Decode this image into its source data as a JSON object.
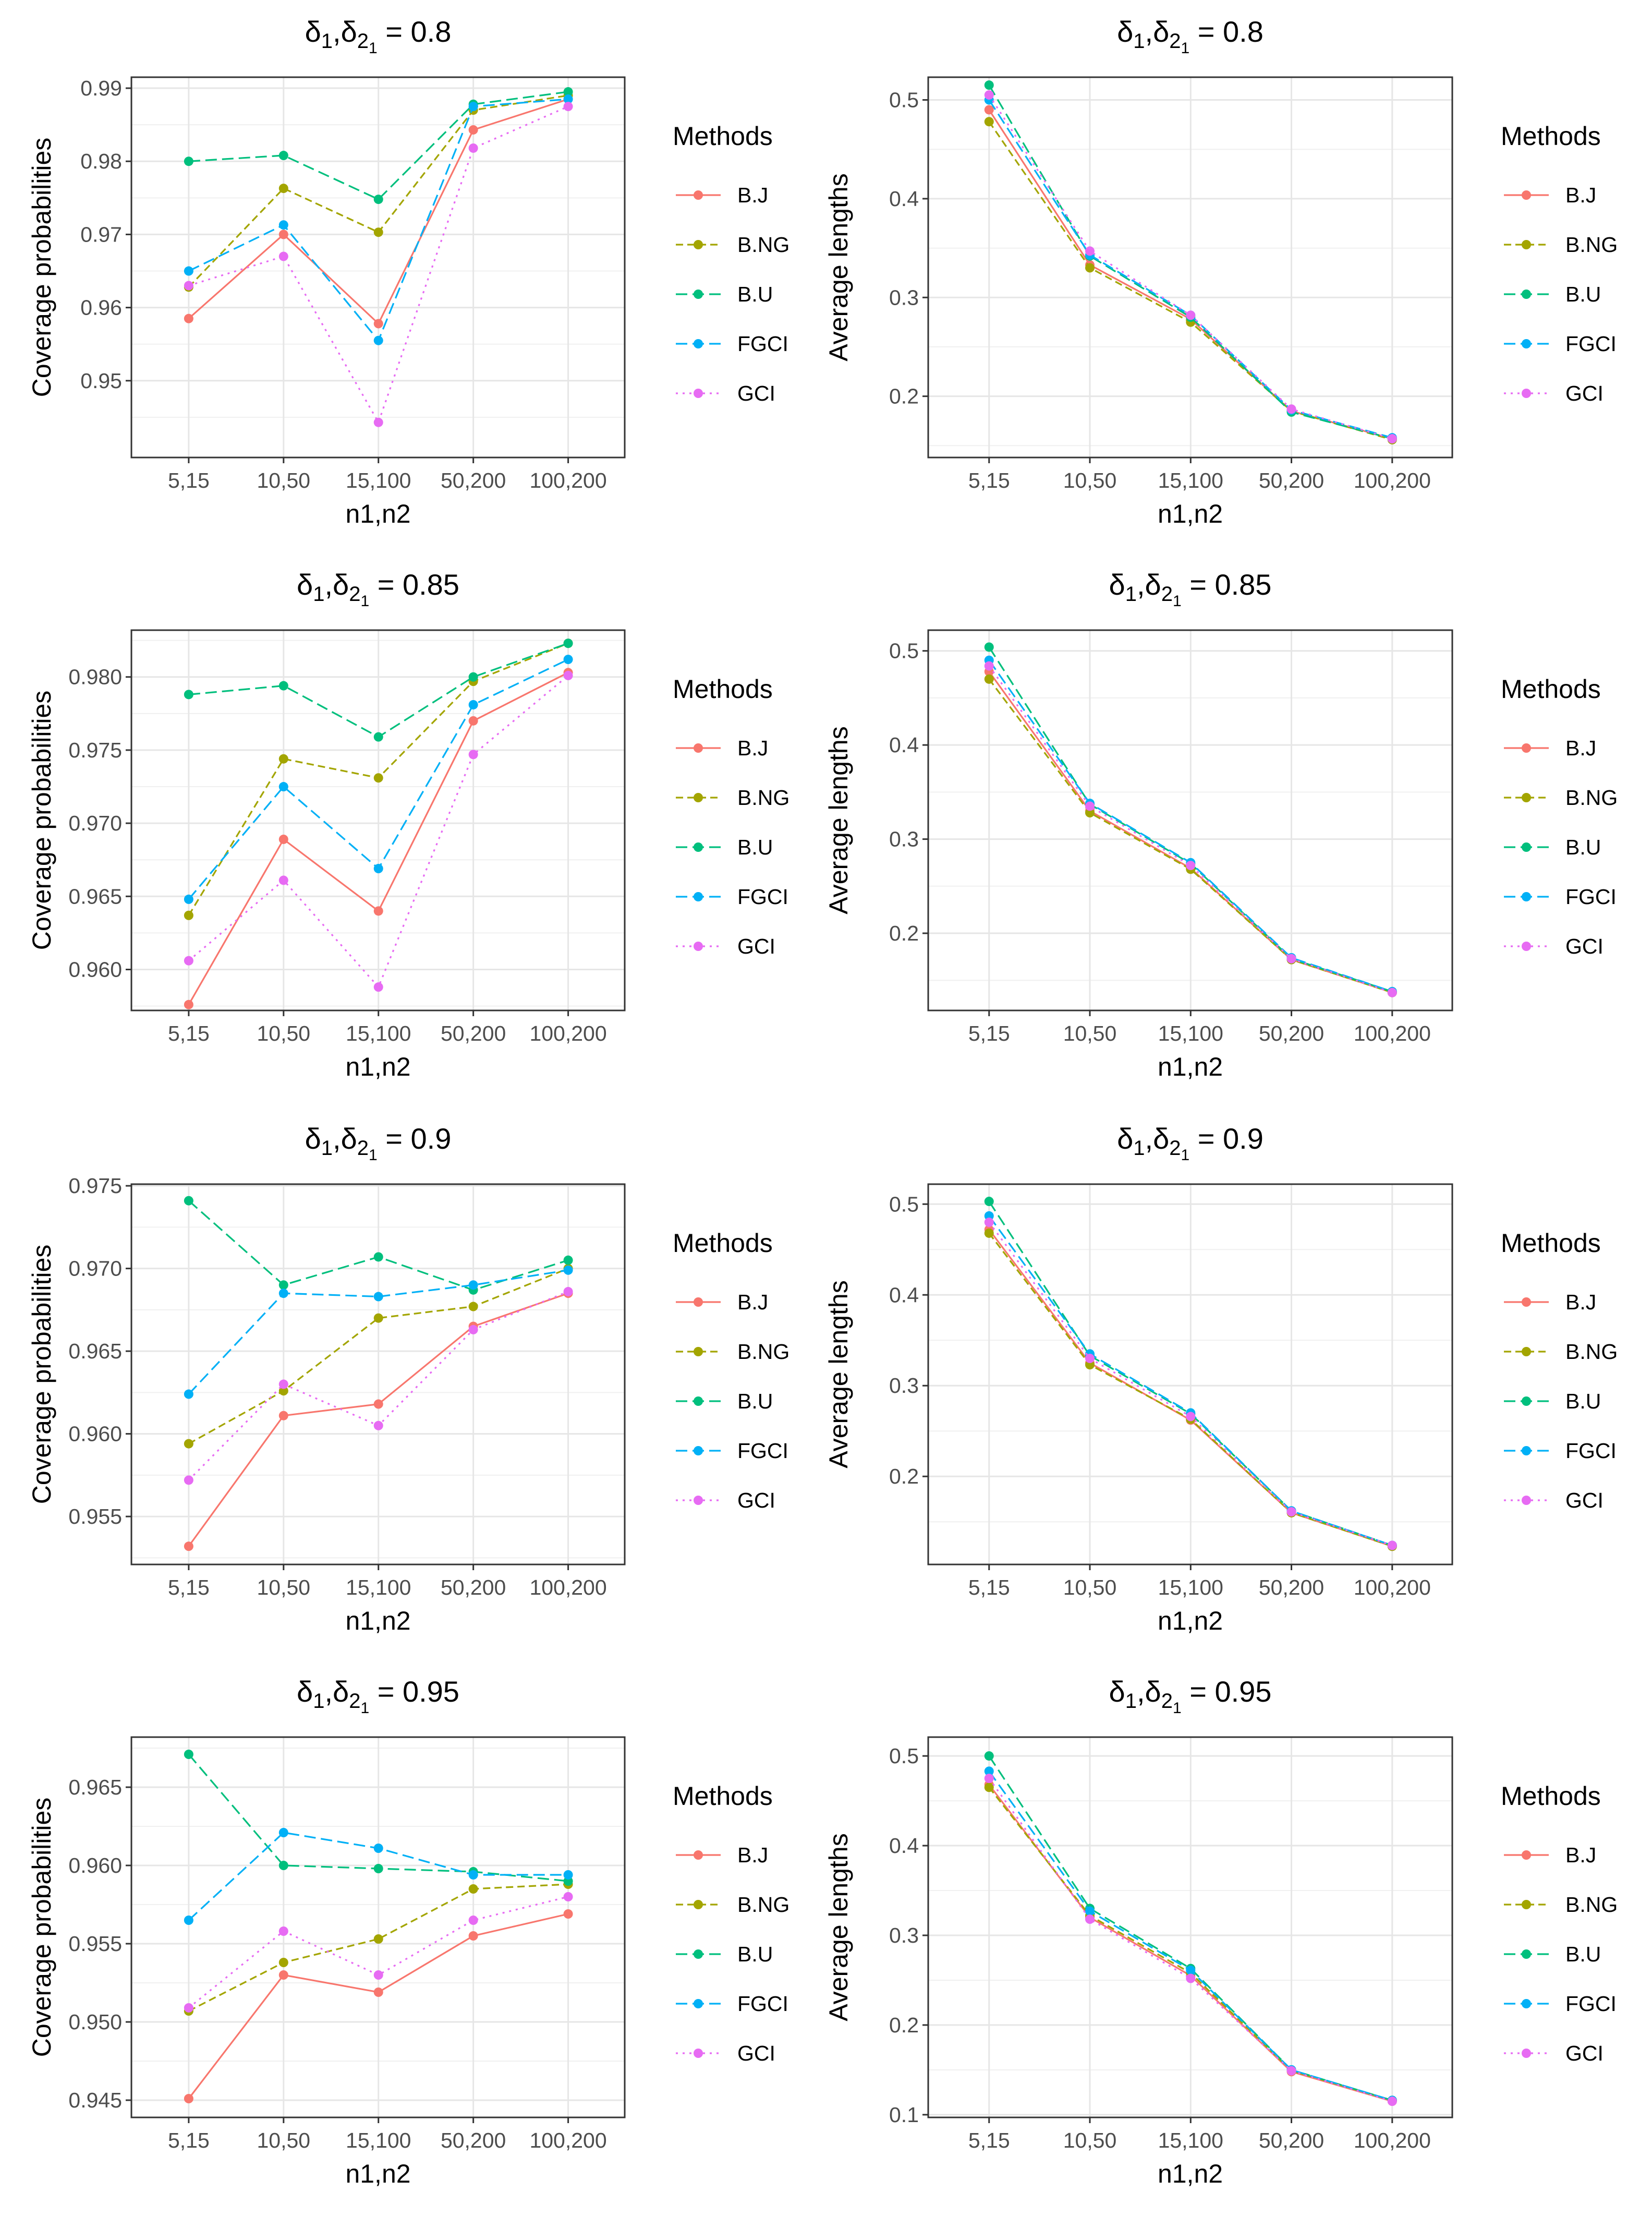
{
  "legend": {
    "title": "Methods",
    "entries": [
      "B.J",
      "B.NG",
      "B.U",
      "FGCI",
      "GCI"
    ]
  },
  "series_style": {
    "B.J": {
      "color": "#F8766D",
      "dash": "solid"
    },
    "B.NG": {
      "color": "#A3A500",
      "dash": "dashed"
    },
    "B.U": {
      "color": "#00BF7D",
      "dash": "longdash"
    },
    "FGCI": {
      "color": "#00B0F6",
      "dash": "longdash"
    },
    "GCI": {
      "color": "#E76BF3",
      "dash": "dotted"
    }
  },
  "chart_data": [
    {
      "type": "line",
      "row": 1,
      "col": 1,
      "title": "δ1₁,δ2₁ = 0.8",
      "title_parts": {
        "delta": "δ",
        "sub_a": "1",
        "sub_b": "2",
        "sub_sub": "1",
        "eq": "= 0.8"
      },
      "xlabel": "n1,n2",
      "ylabel": "Coverage probabilities",
      "categories": [
        "5,15",
        "10,50",
        "15,100",
        "50,200",
        "100,200"
      ],
      "ylim": [
        0.9395,
        0.9915
      ],
      "yticks": [
        0.95,
        0.96,
        0.97,
        0.98,
        0.99
      ],
      "ytick_labels": [
        "0.95",
        "0.96",
        "0.97",
        "0.98",
        "0.99"
      ],
      "series": [
        {
          "name": "B.J",
          "values": [
            0.9585,
            0.97,
            0.9578,
            0.9843,
            0.9885
          ]
        },
        {
          "name": "B.NG",
          "values": [
            0.9628,
            0.9763,
            0.9703,
            0.987,
            0.989
          ]
        },
        {
          "name": "B.U",
          "values": [
            0.98,
            0.9808,
            0.9748,
            0.9878,
            0.9895
          ]
        },
        {
          "name": "FGCI",
          "values": [
            0.965,
            0.9713,
            0.9555,
            0.9875,
            0.9885
          ]
        },
        {
          "name": "GCI",
          "values": [
            0.963,
            0.967,
            0.9443,
            0.9818,
            0.9875
          ]
        }
      ]
    },
    {
      "type": "line",
      "row": 1,
      "col": 2,
      "title": "δ1₁,δ2₁ = 0.8",
      "title_parts": {
        "delta": "δ",
        "sub_a": "1",
        "sub_b": "2",
        "sub_sub": "1",
        "eq": "= 0.8"
      },
      "xlabel": "n1,n2",
      "ylabel": "Average lengths",
      "categories": [
        "5,15",
        "10,50",
        "15,100",
        "50,200",
        "100,200"
      ],
      "ylim": [
        0.138,
        0.523
      ],
      "yticks": [
        0.2,
        0.3,
        0.4,
        0.5
      ],
      "ytick_labels": [
        "0.2",
        "0.3",
        "0.4",
        "0.5"
      ],
      "series": [
        {
          "name": "B.J",
          "values": [
            0.49,
            0.333,
            0.278,
            0.185,
            0.157
          ]
        },
        {
          "name": "B.NG",
          "values": [
            0.478,
            0.33,
            0.275,
            0.185,
            0.156
          ]
        },
        {
          "name": "B.U",
          "values": [
            0.515,
            0.342,
            0.28,
            0.184,
            0.157
          ]
        },
        {
          "name": "FGCI",
          "values": [
            0.5,
            0.343,
            0.282,
            0.186,
            0.158
          ]
        },
        {
          "name": "GCI",
          "values": [
            0.505,
            0.347,
            0.282,
            0.187,
            0.157
          ]
        }
      ]
    },
    {
      "type": "line",
      "row": 2,
      "col": 1,
      "title": "δ1₁,δ2₁ = 0.85",
      "title_parts": {
        "delta": "δ",
        "sub_a": "1",
        "sub_b": "2",
        "sub_sub": "1",
        "eq": "= 0.85"
      },
      "xlabel": "n1,n2",
      "ylabel": "Coverage probabilities",
      "categories": [
        "5,15",
        "10,50",
        "15,100",
        "50,200",
        "100,200"
      ],
      "ylim": [
        0.9572,
        0.9832
      ],
      "yticks": [
        0.96,
        0.965,
        0.97,
        0.975,
        0.98
      ],
      "ytick_labels": [
        "0.960",
        "0.965",
        "0.970",
        "0.975",
        "0.980"
      ],
      "series": [
        {
          "name": "B.J",
          "values": [
            0.9576,
            0.9689,
            0.964,
            0.977,
            0.9803
          ]
        },
        {
          "name": "B.NG",
          "values": [
            0.9637,
            0.9744,
            0.9731,
            0.9797,
            0.9823
          ]
        },
        {
          "name": "B.U",
          "values": [
            0.9788,
            0.9794,
            0.9759,
            0.98,
            0.9823
          ]
        },
        {
          "name": "FGCI",
          "values": [
            0.9648,
            0.9725,
            0.9669,
            0.9781,
            0.9812
          ]
        },
        {
          "name": "GCI",
          "values": [
            0.9606,
            0.9661,
            0.9588,
            0.9747,
            0.9801
          ]
        }
      ]
    },
    {
      "type": "line",
      "row": 2,
      "col": 2,
      "title": "δ1₁,δ2₁ = 0.85",
      "title_parts": {
        "delta": "δ",
        "sub_a": "1",
        "sub_b": "2",
        "sub_sub": "1",
        "eq": "= 0.85"
      },
      "xlabel": "n1,n2",
      "ylabel": "Average lengths",
      "categories": [
        "5,15",
        "10,50",
        "15,100",
        "50,200",
        "100,200"
      ],
      "ylim": [
        0.118,
        0.522
      ],
      "yticks": [
        0.2,
        0.3,
        0.4,
        0.5
      ],
      "ytick_labels": [
        "0.2",
        "0.3",
        "0.4",
        "0.5"
      ],
      "series": [
        {
          "name": "B.J",
          "values": [
            0.478,
            0.33,
            0.269,
            0.172,
            0.137
          ]
        },
        {
          "name": "B.NG",
          "values": [
            0.47,
            0.328,
            0.268,
            0.172,
            0.137
          ]
        },
        {
          "name": "B.U",
          "values": [
            0.504,
            0.337,
            0.274,
            0.173,
            0.138
          ]
        },
        {
          "name": "FGCI",
          "values": [
            0.49,
            0.338,
            0.275,
            0.174,
            0.138
          ]
        },
        {
          "name": "GCI",
          "values": [
            0.484,
            0.335,
            0.272,
            0.173,
            0.137
          ]
        }
      ]
    },
    {
      "type": "line",
      "row": 3,
      "col": 1,
      "title": "δ1₁,δ2₁ = 0.9",
      "title_parts": {
        "delta": "δ",
        "sub_a": "1",
        "sub_b": "2",
        "sub_sub": "1",
        "eq": "= 0.9"
      },
      "xlabel": "n1,n2",
      "ylabel": "Coverage probabilities",
      "categories": [
        "5,15",
        "10,50",
        "15,100",
        "50,200",
        "100,200"
      ],
      "ylim": [
        0.9521,
        0.9751
      ],
      "yticks": [
        0.955,
        0.96,
        0.965,
        0.97,
        0.975
      ],
      "ytick_labels": [
        "0.955",
        "0.960",
        "0.965",
        "0.970",
        "0.975"
      ],
      "series": [
        {
          "name": "B.J",
          "values": [
            0.9532,
            0.9611,
            0.9618,
            0.9665,
            0.9685
          ]
        },
        {
          "name": "B.NG",
          "values": [
            0.9594,
            0.9626,
            0.967,
            0.9677,
            0.97
          ]
        },
        {
          "name": "B.U",
          "values": [
            0.9741,
            0.969,
            0.9707,
            0.9687,
            0.9705
          ]
        },
        {
          "name": "FGCI",
          "values": [
            0.9624,
            0.9685,
            0.9683,
            0.969,
            0.9699
          ]
        },
        {
          "name": "GCI",
          "values": [
            0.9572,
            0.963,
            0.9605,
            0.9663,
            0.9686
          ]
        }
      ]
    },
    {
      "type": "line",
      "row": 3,
      "col": 2,
      "title": "δ1₁,δ2₁ = 0.9",
      "title_parts": {
        "delta": "δ",
        "sub_a": "1",
        "sub_b": "2",
        "sub_sub": "1",
        "eq": "= 0.9"
      },
      "xlabel": "n1,n2",
      "ylabel": "Average lengths",
      "categories": [
        "5,15",
        "10,50",
        "15,100",
        "50,200",
        "100,200"
      ],
      "ylim": [
        0.103,
        0.522
      ],
      "yticks": [
        0.2,
        0.3,
        0.4,
        0.5
      ],
      "ytick_labels": [
        "0.2",
        "0.3",
        "0.4",
        "0.5"
      ],
      "series": [
        {
          "name": "B.J",
          "values": [
            0.472,
            0.325,
            0.262,
            0.16,
            0.123
          ]
        },
        {
          "name": "B.NG",
          "values": [
            0.468,
            0.323,
            0.263,
            0.16,
            0.123
          ]
        },
        {
          "name": "B.U",
          "values": [
            0.503,
            0.333,
            0.269,
            0.162,
            0.124
          ]
        },
        {
          "name": "FGCI",
          "values": [
            0.487,
            0.335,
            0.27,
            0.162,
            0.124
          ]
        },
        {
          "name": "GCI",
          "values": [
            0.48,
            0.33,
            0.266,
            0.161,
            0.124
          ]
        }
      ]
    },
    {
      "type": "line",
      "row": 4,
      "col": 1,
      "title": "δ1₁,δ2₁ = 0.95",
      "title_parts": {
        "delta": "δ",
        "sub_a": "1",
        "sub_b": "2",
        "sub_sub": "1",
        "eq": "= 0.95"
      },
      "xlabel": "n1,n2",
      "ylabel": "Coverage probabilities",
      "categories": [
        "5,15",
        "10,50",
        "15,100",
        "50,200",
        "100,200"
      ],
      "ylim": [
        0.9439,
        0.9682
      ],
      "yticks": [
        0.945,
        0.95,
        0.955,
        0.96,
        0.965
      ],
      "ytick_labels": [
        "0.945",
        "0.950",
        "0.955",
        "0.960",
        "0.965"
      ],
      "series": [
        {
          "name": "B.J",
          "values": [
            0.9451,
            0.953,
            0.9519,
            0.9555,
            0.9569
          ]
        },
        {
          "name": "B.NG",
          "values": [
            0.9507,
            0.9538,
            0.9553,
            0.9585,
            0.9588
          ]
        },
        {
          "name": "B.U",
          "values": [
            0.9671,
            0.96,
            0.9598,
            0.9596,
            0.959
          ]
        },
        {
          "name": "FGCI",
          "values": [
            0.9565,
            0.9621,
            0.9611,
            0.9594,
            0.9594
          ]
        },
        {
          "name": "GCI",
          "values": [
            0.9509,
            0.9558,
            0.953,
            0.9565,
            0.958
          ]
        }
      ]
    },
    {
      "type": "line",
      "row": 4,
      "col": 2,
      "title": "δ1₁,δ2₁ = 0.95",
      "title_parts": {
        "delta": "δ",
        "sub_a": "1",
        "sub_b": "2",
        "sub_sub": "1",
        "eq": "= 0.95"
      },
      "xlabel": "n1,n2",
      "ylabel": "Average lengths",
      "categories": [
        "5,15",
        "10,50",
        "15,100",
        "50,200",
        "100,200"
      ],
      "ylim": [
        0.097,
        0.521
      ],
      "yticks": [
        0.1,
        0.2,
        0.3,
        0.4,
        0.5
      ],
      "ytick_labels": [
        "0.1",
        "0.2",
        "0.3",
        "0.4",
        "0.5"
      ],
      "series": [
        {
          "name": "B.J",
          "values": [
            0.468,
            0.32,
            0.255,
            0.148,
            0.115
          ]
        },
        {
          "name": "B.NG",
          "values": [
            0.465,
            0.322,
            0.258,
            0.149,
            0.116
          ]
        },
        {
          "name": "B.U",
          "values": [
            0.5,
            0.33,
            0.263,
            0.15,
            0.116
          ]
        },
        {
          "name": "FGCI",
          "values": [
            0.483,
            0.327,
            0.261,
            0.15,
            0.116
          ]
        },
        {
          "name": "GCI",
          "values": [
            0.475,
            0.318,
            0.252,
            0.149,
            0.115
          ]
        }
      ]
    }
  ]
}
